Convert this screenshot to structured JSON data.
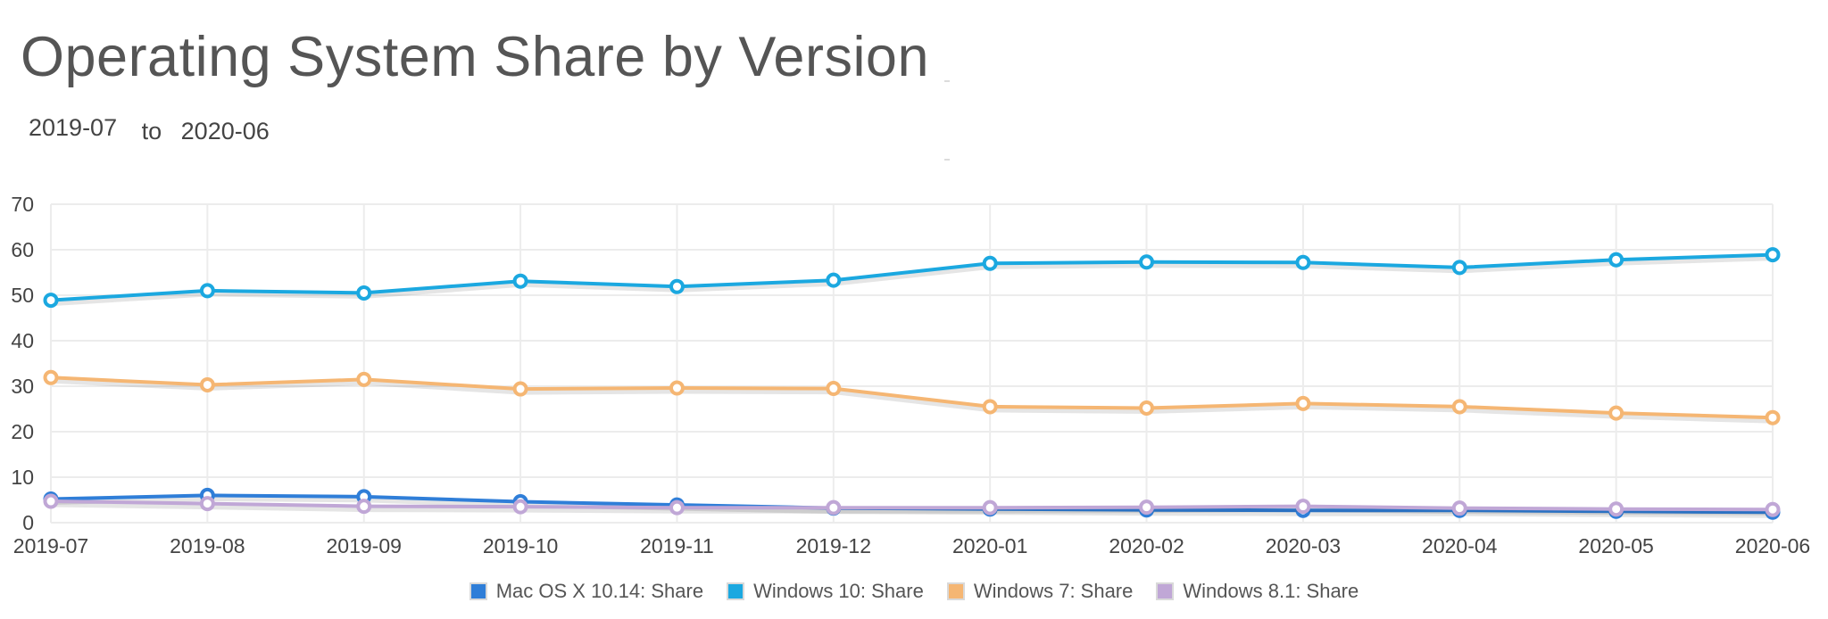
{
  "title": "Operating System Share by Version",
  "date_range": {
    "start": "2019-07",
    "separator": "to",
    "end": "2020-06"
  },
  "chart_data": {
    "type": "line",
    "title": "Operating System Share by Version",
    "xlabel": "",
    "ylabel": "",
    "categories": [
      "2019-07",
      "2019-08",
      "2019-09",
      "2019-10",
      "2019-11",
      "2019-12",
      "2020-01",
      "2020-02",
      "2020-03",
      "2020-04",
      "2020-05",
      "2020-06"
    ],
    "ylim": [
      0,
      70
    ],
    "yticks": [
      "0",
      "10",
      "20",
      "30",
      "40",
      "50",
      "60",
      "70"
    ],
    "grid": true,
    "legend_placement": "bottom-center",
    "series": [
      {
        "name": "Mac OS X 10.14: Share",
        "color": "#2f7ed8",
        "values": [
          5.2,
          6.0,
          5.7,
          4.6,
          3.9,
          3.2,
          3.0,
          2.8,
          2.7,
          2.7,
          2.5,
          2.3
        ]
      },
      {
        "name": "Windows 10: Share",
        "color": "#1ba8e0",
        "values": [
          48.9,
          51.0,
          50.5,
          53.1,
          51.9,
          53.3,
          57.0,
          57.3,
          57.2,
          56.1,
          57.8,
          58.9
        ]
      },
      {
        "name": "Windows 7: Share",
        "color": "#f5b673",
        "values": [
          31.9,
          30.3,
          31.5,
          29.4,
          29.6,
          29.5,
          25.5,
          25.2,
          26.2,
          25.5,
          24.1,
          23.1
        ]
      },
      {
        "name": "Windows 8.1: Share",
        "color": "#c0a7d6",
        "values": [
          4.7,
          4.2,
          3.6,
          3.5,
          3.3,
          3.3,
          3.3,
          3.4,
          3.6,
          3.2,
          3.0,
          2.9
        ]
      }
    ]
  }
}
